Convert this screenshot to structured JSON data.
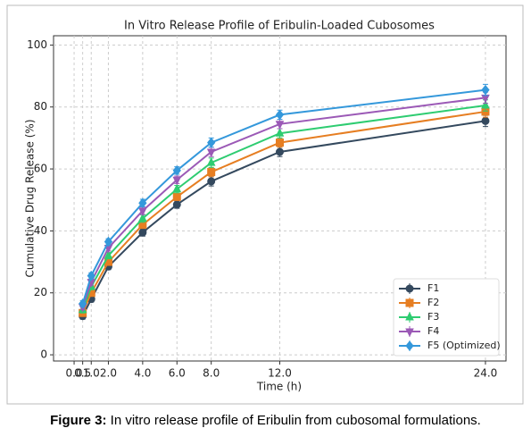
{
  "chart_data": {
    "type": "line",
    "title": "In Vitro Release Profile of Eribulin-Loaded Cubosomes",
    "x_label": "Time (h)",
    "y_label": "Cumulative Drug Release (%)",
    "x": [
      0.5,
      1,
      2,
      4,
      6,
      8,
      12,
      24
    ],
    "series": [
      {
        "name": "F1",
        "color": "#34495e",
        "marker": "circle",
        "values": [
          12.5,
          18,
          28.5,
          39.5,
          48.5,
          56,
          65.5,
          75.5
        ],
        "errors": [
          1,
          1,
          1,
          1.2,
          1.2,
          1.5,
          1.5,
          1.8
        ]
      },
      {
        "name": "F2",
        "color": "#e67e22",
        "marker": "square",
        "values": [
          13.5,
          20,
          30,
          42,
          51,
          59,
          68.5,
          78.5
        ],
        "errors": [
          1,
          1,
          1,
          1.2,
          1.2,
          1.5,
          1.5,
          1.8
        ]
      },
      {
        "name": "F3",
        "color": "#2ecc71",
        "marker": "triangle",
        "values": [
          14.5,
          22,
          32,
          44,
          53.5,
          62,
          71.5,
          80.5
        ],
        "errors": [
          1,
          1,
          1,
          1.2,
          1.2,
          1.5,
          1.5,
          1.8
        ]
      },
      {
        "name": "F4",
        "color": "#9b59b6",
        "marker": "triangle-down",
        "values": [
          15.5,
          23.5,
          34.5,
          46.5,
          56.5,
          65.5,
          74.5,
          83
        ],
        "errors": [
          1,
          1,
          1,
          1.2,
          1.2,
          1.5,
          1.5,
          1.8
        ]
      },
      {
        "name": "F5 (Optimized)",
        "color": "#3498db",
        "marker": "diamond",
        "values": [
          16.5,
          25.5,
          36.5,
          49,
          59.5,
          68.5,
          77.5,
          85.5
        ],
        "errors": [
          1,
          1,
          1,
          1.2,
          1.2,
          1.5,
          1.5,
          1.8
        ]
      }
    ],
    "xlim": [
      -1.2,
      25.2
    ],
    "ylim": [
      -2,
      103
    ],
    "xticks": [
      {
        "value": 0,
        "label": "0.0"
      },
      {
        "value": 0.5,
        "label": "0.5"
      },
      {
        "value": 1,
        "label": "1.0"
      },
      {
        "value": 2,
        "label": "2.0"
      },
      {
        "value": 4,
        "label": "4.0"
      },
      {
        "value": 6,
        "label": "6.0"
      },
      {
        "value": 8,
        "label": "8.0"
      },
      {
        "value": 12,
        "label": "12.0"
      },
      {
        "value": 24,
        "label": "24.0"
      }
    ],
    "yticks": [
      0,
      20,
      40,
      60,
      80,
      100
    ],
    "grid": true,
    "legend": "lower right"
  },
  "caption": {
    "label": "Figure 3:",
    "text": "In vitro release profile of Eribulin from cubosomal formulations."
  }
}
